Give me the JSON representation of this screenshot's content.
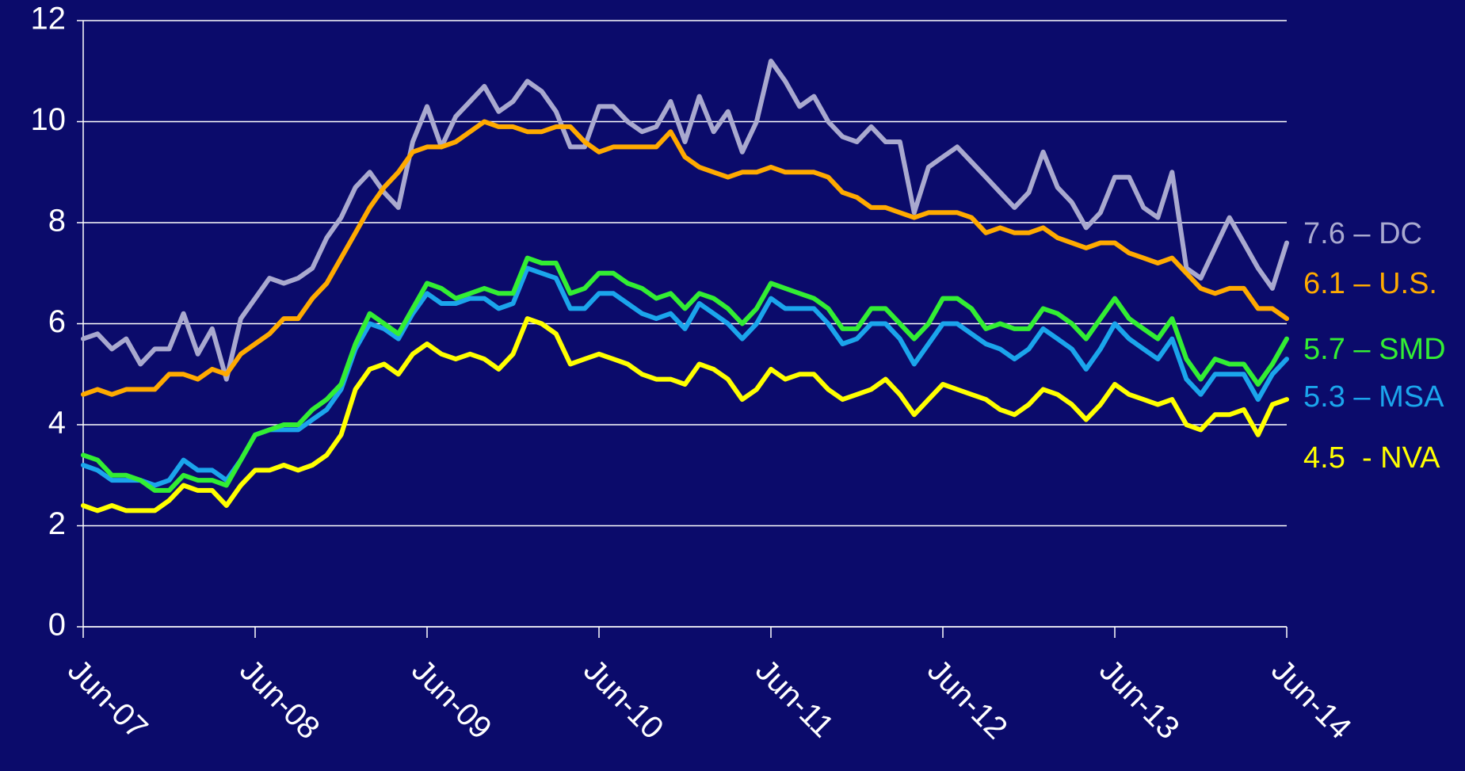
{
  "chart_data": {
    "type": "line",
    "categories": [
      "Jun-07",
      null,
      null,
      null,
      null,
      null,
      null,
      null,
      null,
      null,
      null,
      null,
      "Jun-08",
      null,
      null,
      null,
      null,
      null,
      null,
      null,
      null,
      null,
      null,
      null,
      "Jun-09",
      null,
      null,
      null,
      null,
      null,
      null,
      null,
      null,
      null,
      null,
      null,
      "Jun-10",
      null,
      null,
      null,
      null,
      null,
      null,
      null,
      null,
      null,
      null,
      null,
      "Jun-11",
      null,
      null,
      null,
      null,
      null,
      null,
      null,
      null,
      null,
      null,
      null,
      "Jun-12",
      null,
      null,
      null,
      null,
      null,
      null,
      null,
      null,
      null,
      null,
      null,
      "Jun-13",
      null,
      null,
      null,
      null,
      null,
      null,
      null,
      null,
      null,
      null,
      null,
      "Jun-14"
    ],
    "ylim": [
      0,
      12
    ],
    "yticks": [
      0,
      2,
      4,
      6,
      8,
      10,
      12
    ],
    "grid": true,
    "series": [
      {
        "name": "7.6 – DC",
        "color": "#a9a9cf",
        "values": [
          5.7,
          5.8,
          5.5,
          5.7,
          5.2,
          5.5,
          5.5,
          6.2,
          5.4,
          5.9,
          4.9,
          6.1,
          6.5,
          6.9,
          6.8,
          6.9,
          7.1,
          7.7,
          8.1,
          8.7,
          9.0,
          8.6,
          8.3,
          9.6,
          10.3,
          9.5,
          10.1,
          10.4,
          10.7,
          10.2,
          10.4,
          10.8,
          10.6,
          10.2,
          9.5,
          9.5,
          10.3,
          10.3,
          10.0,
          9.8,
          9.9,
          10.4,
          9.6,
          10.5,
          9.8,
          10.2,
          9.4,
          10.0,
          11.2,
          10.8,
          10.3,
          10.5,
          10.0,
          9.7,
          9.6,
          9.9,
          9.6,
          9.6,
          8.2,
          9.1,
          9.3,
          9.5,
          9.2,
          8.9,
          8.6,
          8.3,
          8.6,
          9.4,
          8.7,
          8.4,
          7.9,
          8.2,
          8.9,
          8.9,
          8.3,
          8.1,
          9.0,
          7.1,
          6.9,
          7.5,
          8.1,
          7.6,
          7.1,
          6.7,
          7.6
        ]
      },
      {
        "name": "6.1 – U.S.",
        "color": "#ffaa00",
        "values": [
          4.6,
          4.7,
          4.6,
          4.7,
          4.7,
          4.7,
          5.0,
          5.0,
          4.9,
          5.1,
          5.0,
          5.4,
          5.6,
          5.8,
          6.1,
          6.1,
          6.5,
          6.8,
          7.3,
          7.8,
          8.3,
          8.7,
          9.0,
          9.4,
          9.5,
          9.5,
          9.6,
          9.8,
          10.0,
          9.9,
          9.9,
          9.8,
          9.8,
          9.9,
          9.9,
          9.6,
          9.4,
          9.5,
          9.5,
          9.5,
          9.5,
          9.8,
          9.3,
          9.1,
          9.0,
          8.9,
          9.0,
          9.0,
          9.1,
          9.0,
          9.0,
          9.0,
          8.9,
          8.6,
          8.5,
          8.3,
          8.3,
          8.2,
          8.1,
          8.2,
          8.2,
          8.2,
          8.1,
          7.8,
          7.9,
          7.8,
          7.8,
          7.9,
          7.7,
          7.6,
          7.5,
          7.6,
          7.6,
          7.4,
          7.3,
          7.2,
          7.3,
          7.0,
          6.7,
          6.6,
          6.7,
          6.7,
          6.3,
          6.3,
          6.1
        ]
      },
      {
        "name": "5.3 – MSA",
        "color": "#1ba5ec",
        "values": [
          3.2,
          3.1,
          2.9,
          2.9,
          2.9,
          2.8,
          2.9,
          3.3,
          3.1,
          3.1,
          2.9,
          3.3,
          3.8,
          3.9,
          3.9,
          3.9,
          4.1,
          4.3,
          4.7,
          5.5,
          6.0,
          5.9,
          5.7,
          6.2,
          6.6,
          6.4,
          6.4,
          6.5,
          6.5,
          6.3,
          6.4,
          7.1,
          7.0,
          6.9,
          6.3,
          6.3,
          6.6,
          6.6,
          6.4,
          6.2,
          6.1,
          6.2,
          5.9,
          6.4,
          6.2,
          6.0,
          5.7,
          6.0,
          6.5,
          6.3,
          6.3,
          6.3,
          6.0,
          5.6,
          5.7,
          6.0,
          6.0,
          5.7,
          5.2,
          5.6,
          6.0,
          6.0,
          5.8,
          5.6,
          5.5,
          5.3,
          5.5,
          5.9,
          5.7,
          5.5,
          5.1,
          5.5,
          6.0,
          5.7,
          5.5,
          5.3,
          5.7,
          4.9,
          4.6,
          5.0,
          5.0,
          5.0,
          4.5,
          5.0,
          5.3
        ]
      },
      {
        "name": "5.7 – SMD",
        "color": "#33ee33",
        "values": [
          3.4,
          3.3,
          3.0,
          3.0,
          2.9,
          2.7,
          2.7,
          3.0,
          2.9,
          2.9,
          2.8,
          3.3,
          3.8,
          3.9,
          4.0,
          4.0,
          4.3,
          4.5,
          4.8,
          5.6,
          6.2,
          6.0,
          5.8,
          6.3,
          6.8,
          6.7,
          6.5,
          6.6,
          6.7,
          6.6,
          6.6,
          7.3,
          7.2,
          7.2,
          6.6,
          6.7,
          7.0,
          7.0,
          6.8,
          6.7,
          6.5,
          6.6,
          6.3,
          6.6,
          6.5,
          6.3,
          6.0,
          6.3,
          6.8,
          6.7,
          6.6,
          6.5,
          6.3,
          5.9,
          5.9,
          6.3,
          6.3,
          6.0,
          5.7,
          6.0,
          6.5,
          6.5,
          6.3,
          5.9,
          6.0,
          5.9,
          5.9,
          6.3,
          6.2,
          6.0,
          5.7,
          6.1,
          6.5,
          6.1,
          5.9,
          5.7,
          6.1,
          5.3,
          4.9,
          5.3,
          5.2,
          5.2,
          4.8,
          5.2,
          5.7
        ]
      },
      {
        "name": "4.5  - NVA",
        "color": "#ffff00",
        "values": [
          2.4,
          2.3,
          2.4,
          2.3,
          2.3,
          2.3,
          2.5,
          2.8,
          2.7,
          2.7,
          2.4,
          2.8,
          3.1,
          3.1,
          3.2,
          3.1,
          3.2,
          3.4,
          3.8,
          4.7,
          5.1,
          5.2,
          5.0,
          5.4,
          5.6,
          5.4,
          5.3,
          5.4,
          5.3,
          5.1,
          5.4,
          6.1,
          6.0,
          5.8,
          5.2,
          5.3,
          5.4,
          5.3,
          5.2,
          5.0,
          4.9,
          4.9,
          4.8,
          5.2,
          5.1,
          4.9,
          4.5,
          4.7,
          5.1,
          4.9,
          5.0,
          5.0,
          4.7,
          4.5,
          4.6,
          4.7,
          4.9,
          4.6,
          4.2,
          4.5,
          4.8,
          4.7,
          4.6,
          4.5,
          4.3,
          4.2,
          4.4,
          4.7,
          4.6,
          4.4,
          4.1,
          4.4,
          4.8,
          4.6,
          4.5,
          4.4,
          4.5,
          4.0,
          3.9,
          4.2,
          4.2,
          4.3,
          3.8,
          4.4,
          4.5
        ]
      }
    ]
  }
}
